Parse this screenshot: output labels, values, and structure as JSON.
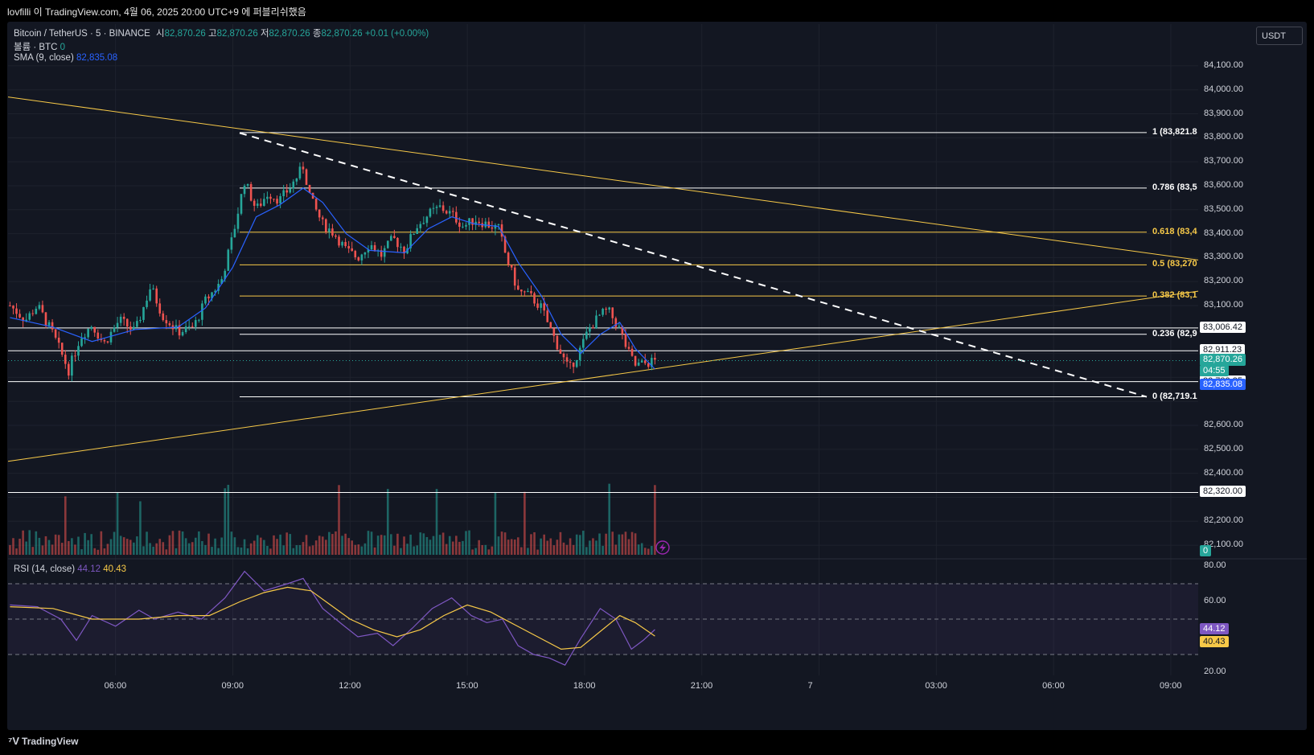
{
  "window": {
    "title": "lovfilli 이 TradingView.com, 4월 06, 2025 20:00 UTC+9 에 퍼블리쉬했음"
  },
  "footer": {
    "brand": "TradingView",
    "logo_icon": "tradingview-logo-icon"
  },
  "legend": {
    "symbol": "Bitcoin / TetherUS · 5 · BINANCE",
    "o_label": "시",
    "o_value": "82,870.26",
    "h_label": "고",
    "h_value": "82,870.26",
    "l_label": "저",
    "l_value": "82,870.26",
    "c_label": "종",
    "c_value": "82,870.26",
    "change": "+0.01 (+0.00%)",
    "volume_label": "볼륨 · BTC",
    "volume_value": "0",
    "sma_label": "SMA (9, close)",
    "sma_value": "82,835.08",
    "rsi_label": "RSI (14, close)",
    "rsi_value": "44.12",
    "rsi_ma_value": "40.43"
  },
  "currency": "USDT",
  "colors": {
    "up": "#26a69a",
    "down": "#ef5350",
    "sma": "#2962ff",
    "rsi": "#7e57c2",
    "rsi_ma": "#f7c948",
    "fib_yellow": "#f7c948",
    "background": "#131722"
  },
  "chart_data": {
    "type": "candlestick",
    "instrument": "Bitcoin / TetherUS",
    "interval": "5",
    "exchange": "BINANCE",
    "y_range": [
      82060,
      84150
    ],
    "y_ticks": [
      "84,100.00",
      "84,000.00",
      "83,900.00",
      "83,800.00",
      "83,700.00",
      "83,600.00",
      "83,500.00",
      "83,400.00",
      "83,300.00",
      "83,200.00",
      "83,100.00",
      "82,600.00",
      "82,500.00",
      "82,400.00",
      "82,200.00",
      "82,100.00"
    ],
    "x_ticks": [
      "06:00",
      "09:00",
      "12:00",
      "15:00",
      "18:00",
      "21:00",
      "7",
      "03:00",
      "06:00",
      "09:00"
    ],
    "x_tick_hours": [
      6,
      9,
      12,
      15,
      18,
      21,
      24,
      27,
      30,
      33
    ],
    "x_range_hours": [
      3.25,
      33.7
    ],
    "price_path": [
      [
        3.3,
        83100
      ],
      [
        3.7,
        83040
      ],
      [
        4.0,
        83100
      ],
      [
        4.4,
        82980
      ],
      [
        4.8,
        82830
      ],
      [
        5.1,
        82970
      ],
      [
        5.4,
        83020
      ],
      [
        5.7,
        82940
      ],
      [
        6.1,
        83040
      ],
      [
        6.5,
        82990
      ],
      [
        6.9,
        83180
      ],
      [
        7.2,
        83060
      ],
      [
        7.6,
        82990
      ],
      [
        8.0,
        83010
      ],
      [
        8.3,
        83120
      ],
      [
        8.7,
        83200
      ],
      [
        9.0,
        83390
      ],
      [
        9.3,
        83620
      ],
      [
        9.6,
        83500
      ],
      [
        9.9,
        83570
      ],
      [
        10.2,
        83540
      ],
      [
        10.5,
        83600
      ],
      [
        10.8,
        83680
      ],
      [
        11.0,
        83540
      ],
      [
        11.3,
        83440
      ],
      [
        11.6,
        83400
      ],
      [
        11.9,
        83330
      ],
      [
        12.2,
        83300
      ],
      [
        12.5,
        83360
      ],
      [
        12.8,
        83310
      ],
      [
        13.1,
        83380
      ],
      [
        13.4,
        83330
      ],
      [
        13.7,
        83430
      ],
      [
        14.0,
        83480
      ],
      [
        14.3,
        83510
      ],
      [
        14.6,
        83480
      ],
      [
        14.9,
        83430
      ],
      [
        15.2,
        83460
      ],
      [
        15.5,
        83440
      ],
      [
        15.8,
        83420
      ],
      [
        16.0,
        83300
      ],
      [
        16.3,
        83160
      ],
      [
        16.6,
        83140
      ],
      [
        16.9,
        83090
      ],
      [
        17.1,
        83010
      ],
      [
        17.4,
        82900
      ],
      [
        17.6,
        82830
      ],
      [
        17.9,
        82920
      ],
      [
        18.1,
        83000
      ],
      [
        18.4,
        83060
      ],
      [
        18.6,
        83080
      ],
      [
        18.9,
        83000
      ],
      [
        19.1,
        82910
      ],
      [
        19.3,
        82850
      ],
      [
        19.6,
        82860
      ],
      [
        19.8,
        82870
      ]
    ],
    "sma_path": [
      [
        3.3,
        83050
      ],
      [
        4.4,
        83010
      ],
      [
        5.4,
        82950
      ],
      [
        6.5,
        83000
      ],
      [
        7.6,
        83010
      ],
      [
        8.3,
        83090
      ],
      [
        9.0,
        83260
      ],
      [
        9.6,
        83470
      ],
      [
        10.2,
        83520
      ],
      [
        10.8,
        83590
      ],
      [
        11.3,
        83530
      ],
      [
        11.9,
        83400
      ],
      [
        12.5,
        83330
      ],
      [
        13.4,
        83320
      ],
      [
        14.0,
        83420
      ],
      [
        14.6,
        83470
      ],
      [
        15.2,
        83440
      ],
      [
        15.8,
        83430
      ],
      [
        16.3,
        83280
      ],
      [
        16.9,
        83140
      ],
      [
        17.4,
        82980
      ],
      [
        17.9,
        82900
      ],
      [
        18.4,
        82980
      ],
      [
        18.9,
        83030
      ],
      [
        19.3,
        82920
      ],
      [
        19.8,
        82835
      ]
    ],
    "price_lines": [
      {
        "price": 83006.42,
        "label": "83,006.42"
      },
      {
        "price": 82911.23,
        "label": "82,911.23"
      },
      {
        "price": 82782.35,
        "label": "82,782.35"
      },
      {
        "price": 82320.0,
        "label": "82,320.00"
      }
    ],
    "current_price": {
      "label": "82,870.26",
      "countdown": "04:55"
    },
    "sma_tag": "82,835.08",
    "volume_tag": "0",
    "fib_levels": [
      {
        "label": "1 (83,821.8",
        "price": 83821.8,
        "color": "#ffffff"
      },
      {
        "label": "0.786 (83,5",
        "price": 83590,
        "color": "#ffffff"
      },
      {
        "label": "0.618 (83,4",
        "price": 83406,
        "color": "#f7c948"
      },
      {
        "label": "0.5 (83,270",
        "price": 83270,
        "color": "#f7c948"
      },
      {
        "label": "0.382 (83,1",
        "price": 83140,
        "color": "#f7c948"
      },
      {
        "label": "0.236 (82,9",
        "price": 82980,
        "color": "#ffffff"
      },
      {
        "label": "0 (82,719.1",
        "price": 82719.1,
        "color": "#ffffff"
      }
    ],
    "rsi": {
      "range": [
        20,
        80
      ],
      "ticks": [
        "80.00",
        "60.00",
        "20.00"
      ],
      "upper": 70,
      "middle": 50,
      "lower": 30,
      "value_tag": "44.12",
      "ma_tag": "40.43",
      "rsi_path": [
        [
          3.3,
          58
        ],
        [
          4.0,
          57
        ],
        [
          4.6,
          50
        ],
        [
          5.0,
          38
        ],
        [
          5.4,
          52
        ],
        [
          6.0,
          46
        ],
        [
          6.6,
          55
        ],
        [
          7.0,
          50
        ],
        [
          7.6,
          54
        ],
        [
          8.2,
          50
        ],
        [
          8.8,
          62
        ],
        [
          9.3,
          77
        ],
        [
          9.8,
          66
        ],
        [
          10.4,
          70
        ],
        [
          10.8,
          73
        ],
        [
          11.3,
          56
        ],
        [
          11.8,
          47
        ],
        [
          12.2,
          40
        ],
        [
          12.7,
          42
        ],
        [
          13.1,
          35
        ],
        [
          13.6,
          45
        ],
        [
          14.1,
          56
        ],
        [
          14.6,
          62
        ],
        [
          15.1,
          52
        ],
        [
          15.5,
          48
        ],
        [
          15.9,
          50
        ],
        [
          16.3,
          35
        ],
        [
          16.7,
          30
        ],
        [
          17.1,
          28
        ],
        [
          17.5,
          24
        ],
        [
          17.9,
          39
        ],
        [
          18.4,
          56
        ],
        [
          18.8,
          50
        ],
        [
          19.2,
          33
        ],
        [
          19.5,
          38
        ],
        [
          19.8,
          44.1
        ]
      ],
      "ma_path": [
        [
          3.3,
          57
        ],
        [
          4.4,
          56
        ],
        [
          5.4,
          50
        ],
        [
          6.6,
          50
        ],
        [
          7.6,
          52
        ],
        [
          8.4,
          52
        ],
        [
          9.2,
          60
        ],
        [
          9.8,
          65
        ],
        [
          10.4,
          68
        ],
        [
          11.0,
          66
        ],
        [
          11.5,
          58
        ],
        [
          12.0,
          50
        ],
        [
          12.6,
          44
        ],
        [
          13.2,
          40
        ],
        [
          13.8,
          44
        ],
        [
          14.4,
          52
        ],
        [
          15.0,
          58
        ],
        [
          15.6,
          54
        ],
        [
          16.2,
          47
        ],
        [
          16.8,
          40
        ],
        [
          17.4,
          33
        ],
        [
          17.9,
          34
        ],
        [
          18.4,
          43
        ],
        [
          18.9,
          52
        ],
        [
          19.3,
          48
        ],
        [
          19.8,
          40.4
        ]
      ]
    },
    "grid": true,
    "legend": "top-left"
  }
}
